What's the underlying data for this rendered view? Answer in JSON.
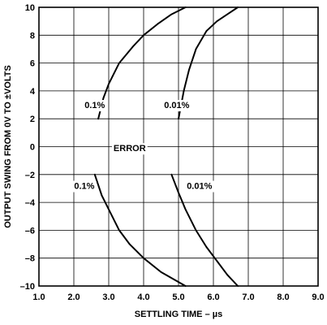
{
  "chart_data": {
    "type": "line",
    "title": "",
    "xlabel": "SETTLING TIME – µs",
    "ylabel": "OUTPUT SWING FROM 0V TO ±VOLTS",
    "xlim": [
      1.0,
      9.0
    ],
    "ylim": [
      -10,
      10
    ],
    "grid": true,
    "x_ticks": [
      1.0,
      2.0,
      3.0,
      4.0,
      5.0,
      6.0,
      7.0,
      8.0,
      9.0
    ],
    "x_tick_labels": [
      "1.0",
      "2.0",
      "3.0",
      "4.0",
      "5.0",
      "6.0",
      "7.0",
      "8.0",
      "9.0"
    ],
    "y_ticks": [
      10,
      8,
      6,
      4,
      2,
      0,
      -2,
      -4,
      -6,
      -8,
      -10
    ],
    "y_tick_labels": [
      "10",
      "8",
      "6",
      "4",
      "2",
      "0",
      "–2",
      "–4",
      "–6",
      "–8",
      "–10"
    ],
    "series": [
      {
        "x": [
          2.7,
          2.85,
          3.0,
          3.3,
          3.7,
          4.0,
          4.4,
          4.8,
          5.2
        ],
        "y": [
          2,
          3.5,
          4.5,
          6.0,
          7.2,
          8.0,
          8.8,
          9.5,
          10
        ]
      },
      {
        "x": [
          5.0,
          5.15,
          5.3,
          5.5,
          5.8,
          6.1,
          6.4,
          6.7
        ],
        "y": [
          2,
          4.0,
          5.5,
          7.0,
          8.3,
          9.0,
          9.5,
          10
        ]
      },
      {
        "x": [
          2.6,
          2.8,
          3.0,
          3.3,
          3.6,
          4.0,
          4.5,
          5.2
        ],
        "y": [
          -2,
          -3.5,
          -4.5,
          -6.0,
          -7.0,
          -8.0,
          -9.0,
          -10
        ]
      },
      {
        "x": [
          4.8,
          5.0,
          5.2,
          5.5,
          5.8,
          6.1,
          6.4,
          6.7
        ],
        "y": [
          -2,
          -3.3,
          -4.5,
          -6.0,
          -7.2,
          -8.2,
          -9.2,
          -10
        ]
      }
    ],
    "annotations": [
      {
        "text": "0.1%",
        "x": 2.6,
        "y": 3.0
      },
      {
        "text": "0.01%",
        "x": 4.95,
        "y": 3.0
      },
      {
        "text": "ERROR",
        "x": 3.6,
        "y": -0.1
      },
      {
        "text": "0.1%",
        "x": 2.3,
        "y": -2.8
      },
      {
        "text": "0.01%",
        "x": 5.6,
        "y": -2.8
      }
    ]
  }
}
